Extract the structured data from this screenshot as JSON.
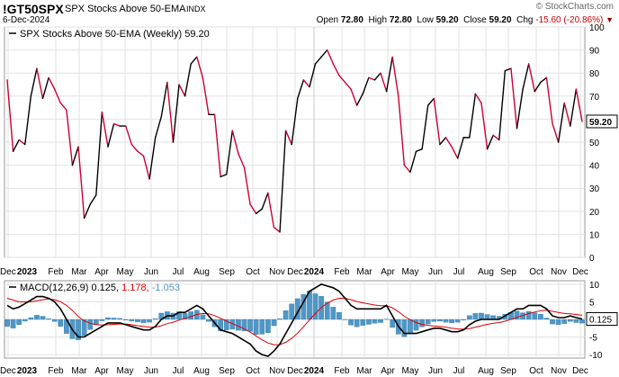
{
  "header": {
    "symbol": "!GT50SPX",
    "description": "SPX Stocks Above 50-EMA",
    "exchange": "INDX",
    "date": "6-Dec-2024",
    "copyright": "© StockCharts.com",
    "open_label": "Open",
    "open": "72.80",
    "high_label": "High",
    "high": "72.80",
    "low_label": "Low",
    "low": "59.20",
    "close_label": "Close",
    "close": "59.20",
    "chg_label": "Chg",
    "chg": "-15.60 (-20.86%)",
    "chg_icon": "down-triangle-icon"
  },
  "chart_data": [
    {
      "type": "line",
      "legend": "SPX Stocks Above 50-EMA (Weekly) 59.20",
      "series_name": "SPX Stocks Above 50-EMA (Weekly)",
      "last_value": "59.20",
      "ylim": [
        0,
        100
      ],
      "yticks": [
        0,
        10,
        20,
        30,
        40,
        50,
        60,
        70,
        80,
        90,
        100
      ],
      "up_color": "#000000",
      "down_color": "#cc0033",
      "grid": true,
      "values": [
        77,
        46,
        51,
        49,
        70,
        82,
        69,
        78,
        73,
        67,
        64,
        40,
        48,
        17,
        23,
        27,
        63,
        48,
        58,
        57,
        57,
        49,
        46,
        44,
        34,
        52,
        61,
        76,
        50,
        75,
        70,
        84,
        87,
        78,
        62,
        62,
        35,
        36,
        55,
        45,
        39,
        23,
        19,
        21,
        28,
        13,
        11,
        55,
        49,
        69,
        77,
        74,
        84,
        87,
        90,
        84,
        79,
        76,
        73,
        66,
        71,
        78,
        77,
        80,
        72,
        87,
        70,
        40,
        37,
        46,
        47,
        66,
        69,
        49,
        52,
        48,
        43,
        52,
        52,
        71,
        67,
        47,
        53,
        51,
        81,
        82,
        56,
        73,
        84,
        72,
        76,
        78,
        58,
        50,
        67,
        57,
        73,
        59
      ],
      "x_tick_labels": [
        "Dec",
        "2023",
        "Feb",
        "Mar",
        "Apr",
        "May",
        "Jun",
        "Jul",
        "Aug",
        "Sep",
        "Oct",
        "Nov",
        "Dec",
        "2024",
        "Feb",
        "Mar",
        "Apr",
        "May",
        "Jun",
        "Jul",
        "Aug",
        "Sep",
        "Oct",
        "Nov",
        "Dec"
      ]
    },
    {
      "type": "line+bar",
      "legend_name": "MACD(12,26,9)",
      "macd_value": "0.125",
      "signal_value": "1.178",
      "hist_value": "-1.053",
      "ylim": [
        -11,
        11
      ],
      "yticks": [
        -10,
        -5,
        0,
        5,
        10
      ],
      "macd_color": "#000000",
      "signal_color": "#dd0000",
      "hist_color": "#4f97c6",
      "last_value_label": "0.125",
      "macd": [
        4,
        3,
        3.5,
        4.5,
        5.5,
        6.5,
        6.5,
        6,
        5,
        3,
        0,
        -3,
        -5,
        -5,
        -4,
        -3,
        -2,
        -1,
        -1,
        -1,
        -1.5,
        -2,
        -2.5,
        -3,
        -3,
        -2,
        0,
        1,
        1,
        2,
        2,
        3,
        4,
        3,
        1,
        -1,
        -3,
        -3.5,
        -4,
        -5,
        -6,
        -7,
        -9,
        -10,
        -10.5,
        -9,
        -7,
        -4,
        -1,
        2,
        5,
        8,
        9,
        10,
        9.5,
        9,
        8,
        6,
        4,
        3,
        3,
        3,
        3,
        3,
        4,
        1,
        -2,
        -4,
        -4,
        -4,
        -3.5,
        -3,
        -2.5,
        -2.5,
        -3,
        -3.5,
        -3.5,
        -3,
        -1.5,
        -0.5,
        0,
        0,
        0,
        0,
        1,
        2,
        3,
        3,
        4,
        4,
        4,
        3,
        1,
        0.5,
        0.5,
        1,
        0.5,
        0.125
      ],
      "signal": [
        6,
        5.5,
        5,
        5,
        5,
        5.3,
        5.6,
        5.8,
        5.6,
        5,
        4,
        2.5,
        0.8,
        -0.4,
        -1.1,
        -1.5,
        -1.6,
        -1.5,
        -1.4,
        -1.3,
        -1.3,
        -1.5,
        -1.8,
        -2,
        -2.2,
        -2.2,
        -1.8,
        -1.2,
        -0.8,
        -0.2,
        0.3,
        0.8,
        1.4,
        1.7,
        1.6,
        1.1,
        0.3,
        -0.5,
        -1.2,
        -1.9,
        -2.7,
        -3.6,
        -4.7,
        -5.8,
        -6.7,
        -7.2,
        -7.2,
        -6.5,
        -5.4,
        -3.9,
        -2.1,
        -0.1,
        1.7,
        3.4,
        4.6,
        5.5,
        6,
        6,
        5.6,
        5.1,
        4.7,
        4.4,
        4.1,
        3.9,
        3.9,
        3.3,
        2.2,
        0.9,
        -0.1,
        -0.9,
        -1.4,
        -1.7,
        -1.9,
        -2,
        -2.2,
        -2.5,
        -2.7,
        -2.8,
        -2.6,
        -2.2,
        -1.8,
        -1.4,
        -1.1,
        -0.9,
        -0.5,
        0,
        0.6,
        1.1,
        1.7,
        2.1,
        2.5,
        2.6,
        2.3,
        2,
        1.7,
        1.6,
        1.4,
        1.178
      ]
    }
  ],
  "bottom_axis_labels": [
    "Dec",
    "2023",
    "Feb",
    "Mar",
    "Apr",
    "May",
    "Jun",
    "Jul",
    "Aug",
    "Sep",
    "Oct",
    "Nov",
    "Dec",
    "2024",
    "Feb",
    "Mar",
    "Apr",
    "May",
    "Jun",
    "Jul",
    "Aug",
    "Sep",
    "Oct",
    "Nov",
    "Dec"
  ]
}
